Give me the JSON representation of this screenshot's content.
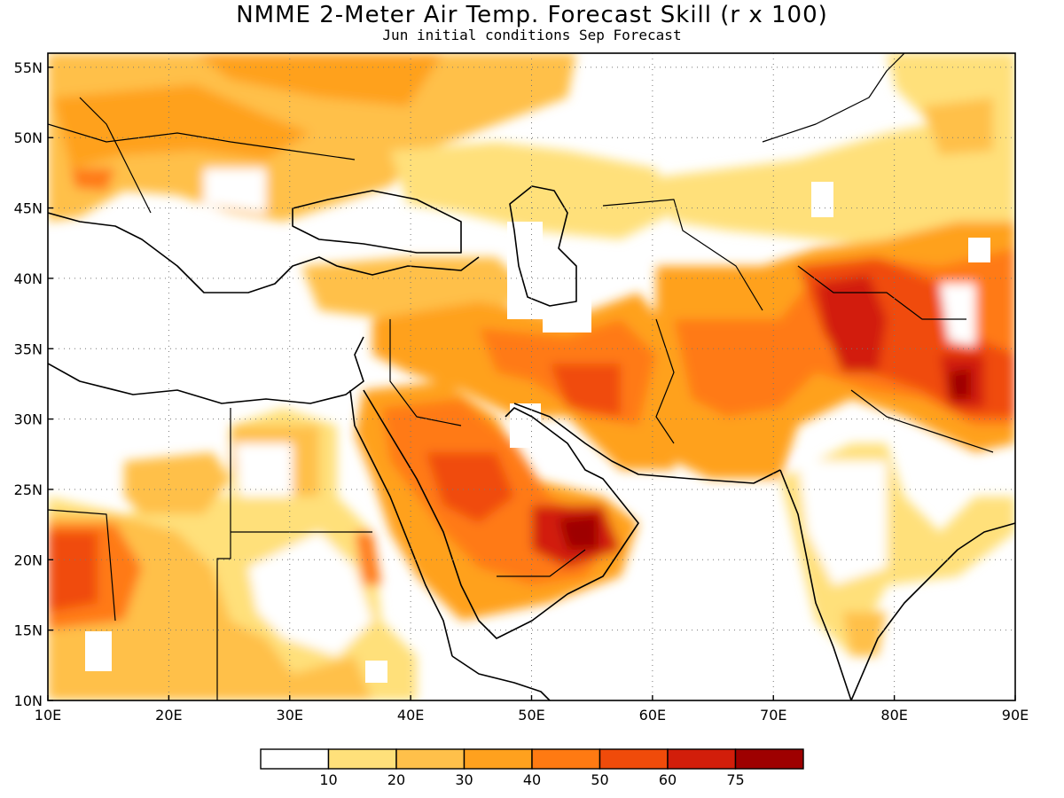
{
  "title": "NMME 2-Meter Air Temp. Forecast Skill (r x 100)",
  "subtitle": "Jun initial conditions  Sep Forecast",
  "map": {
    "lon_range": [
      10,
      90
    ],
    "lat_range": [
      10,
      56
    ],
    "lon_ticks": [
      "10E",
      "20E",
      "30E",
      "40E",
      "50E",
      "60E",
      "70E",
      "80E",
      "90E"
    ],
    "lat_ticks": [
      "10N",
      "15N",
      "20N",
      "25N",
      "30N",
      "35N",
      "40N",
      "45N",
      "50N",
      "55N"
    ],
    "lon_tick_values": [
      10,
      20,
      30,
      40,
      50,
      60,
      70,
      80,
      90
    ],
    "lat_tick_values": [
      10,
      15,
      20,
      25,
      30,
      35,
      40,
      45,
      50,
      55
    ],
    "grid": "dotted"
  },
  "colorbar": {
    "labels": [
      "10",
      "20",
      "30",
      "40",
      "50",
      "60",
      "75"
    ],
    "colors": [
      "#ffffff",
      "#ffe07a",
      "#ffc04a",
      "#ffa11e",
      "#ff7a12",
      "#f04b0a",
      "#d21e0a",
      "#9e0000"
    ]
  }
}
